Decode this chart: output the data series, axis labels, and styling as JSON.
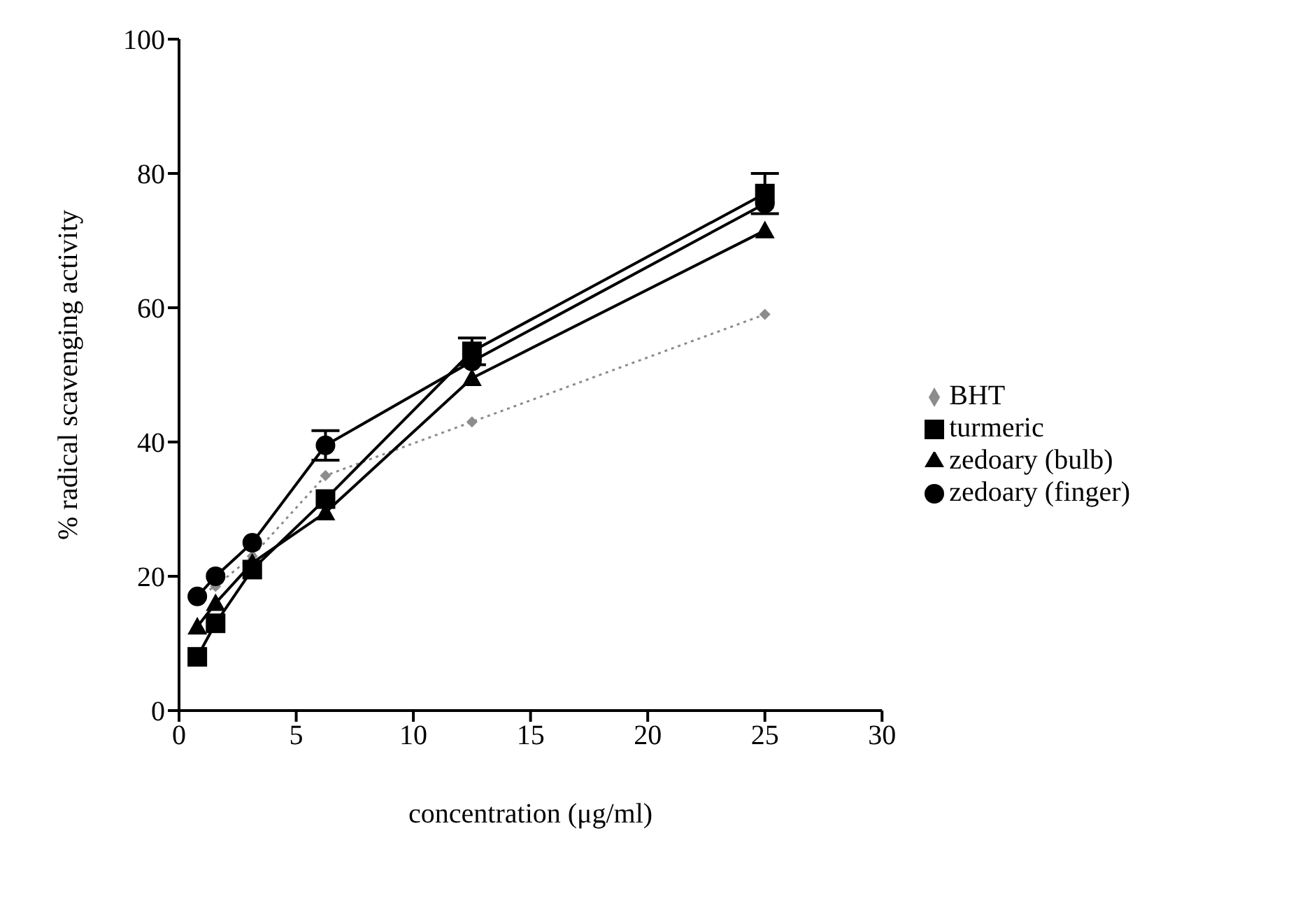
{
  "chart_data": {
    "type": "line",
    "xlabel": "concentration (μg/ml)",
    "ylabel": "% radical scavenging activity",
    "x": [
      0.78,
      1.56,
      3.125,
      6.25,
      12.5,
      25
    ],
    "series": [
      {
        "name": "BHT",
        "color": "#8c8c8c",
        "values": [
          17,
          18.5,
          23,
          35,
          43,
          59
        ],
        "marker": "diamond",
        "line_style": "dotted"
      },
      {
        "name": "turmeric",
        "color": "#000000",
        "values": [
          8,
          13,
          21,
          31.5,
          53.5,
          77
        ],
        "errors": [
          null,
          null,
          null,
          null,
          2,
          3
        ],
        "marker": "square",
        "line_style": "solid"
      },
      {
        "name": "zedoary (bulb)",
        "color": "#000000",
        "values": [
          12.5,
          16,
          22,
          29.5,
          49.5,
          71.5
        ],
        "marker": "triangle",
        "line_style": "solid"
      },
      {
        "name": "zedoary (finger)",
        "color": "#000000",
        "values": [
          17,
          20,
          25,
          39.5,
          52,
          75.5
        ],
        "errors": [
          null,
          null,
          null,
          2.2,
          null,
          null
        ],
        "marker": "circle",
        "line_style": "solid"
      }
    ],
    "xlim": [
      0,
      30
    ],
    "xticks": [
      0,
      5,
      10,
      15,
      20,
      25,
      30
    ],
    "ylim": [
      0,
      100
    ],
    "yticks": [
      0,
      20,
      40,
      60,
      80,
      100
    ],
    "grid": false,
    "legend": "right"
  }
}
